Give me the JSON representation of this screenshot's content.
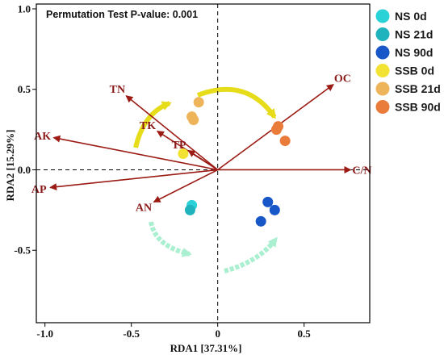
{
  "annotation": "Permutation Test P-value: 0.001",
  "chart_data": {
    "type": "scatter",
    "xlabel": "RDA1 [37.31%]",
    "ylabel": "RDA2 [15.29%]",
    "xlim": [
      -1.05,
      0.88
    ],
    "ylim": [
      -0.95,
      1.03
    ],
    "xticks": [
      -1.0,
      -0.5,
      0,
      0.5
    ],
    "xtick_labels": [
      "-1.0",
      "-0.5",
      "0",
      "0.5"
    ],
    "yticks": [
      -0.5,
      0.0,
      0.5,
      1.0
    ],
    "ytick_labels": [
      "-0.5",
      "0.0",
      "0.5",
      "1.0"
    ],
    "grid": false,
    "zero_lines": true,
    "legend_position": "right",
    "series": [
      {
        "name": "NS 0d",
        "color": "#28d2d6",
        "points": [
          [
            -0.15,
            -0.22
          ]
        ]
      },
      {
        "name": "NS 21d",
        "color": "#1fb3be",
        "points": [
          [
            -0.16,
            -0.25
          ]
        ]
      },
      {
        "name": "NS 90d",
        "color": "#1757c7",
        "points": [
          [
            0.29,
            -0.2
          ],
          [
            0.33,
            -0.25
          ],
          [
            0.25,
            -0.32
          ]
        ]
      },
      {
        "name": "SSB 0d",
        "color": "#f2e233",
        "points": [
          [
            -0.2,
            0.1
          ]
        ]
      },
      {
        "name": "SSB 21d",
        "color": "#edb45a",
        "points": [
          [
            -0.11,
            0.42
          ],
          [
            -0.15,
            0.33
          ],
          [
            -0.14,
            0.31
          ]
        ]
      },
      {
        "name": "SSB 90d",
        "color": "#e97b3b",
        "points": [
          [
            0.35,
            0.27
          ],
          [
            0.34,
            0.25
          ],
          [
            0.39,
            0.18
          ]
        ]
      }
    ],
    "vectors": [
      {
        "label": "OC",
        "x": 0.67,
        "y": 0.53
      },
      {
        "label": "C/N",
        "x": 0.77,
        "y": 0.0
      },
      {
        "label": "TN",
        "x": -0.53,
        "y": 0.46
      },
      {
        "label": "TK",
        "x": -0.35,
        "y": 0.24
      },
      {
        "label": "TP",
        "x": -0.17,
        "y": 0.12
      },
      {
        "label": "AK",
        "x": -0.95,
        "y": 0.2
      },
      {
        "label": "AP",
        "x": -0.97,
        "y": -0.11
      },
      {
        "label": "AN",
        "x": -0.37,
        "y": -0.2
      }
    ],
    "vector_color": "#9b1b14"
  },
  "colors": {
    "yellow_arrow": "#e6dc1a",
    "mint_arrow": "#aaf0d0"
  }
}
